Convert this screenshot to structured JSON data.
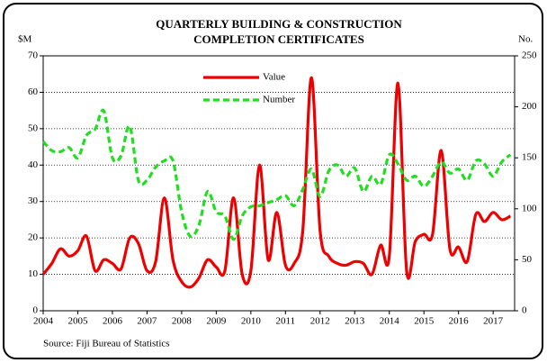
{
  "chart_data": {
    "type": "line",
    "title": [
      "QUARTERLY BUILDING & CONSTRUCTION",
      "COMPLETION CERTIFICATES"
    ],
    "ylabel": "$M",
    "y2label": "No.",
    "source": "Source: Fiji Bureau of Statistics",
    "x": [
      2004,
      2004.25,
      2004.5,
      2004.75,
      2005,
      2005.25,
      2005.5,
      2005.75,
      2006,
      2006.25,
      2006.5,
      2006.75,
      2007,
      2007.25,
      2007.5,
      2007.75,
      2008,
      2008.25,
      2008.5,
      2008.75,
      2009,
      2009.25,
      2009.5,
      2009.75,
      2010,
      2010.25,
      2010.5,
      2010.75,
      2011,
      2011.25,
      2011.5,
      2011.75,
      2012,
      2012.25,
      2012.5,
      2012.75,
      2013,
      2013.25,
      2013.5,
      2013.75,
      2014,
      2014.25,
      2014.5,
      2014.75,
      2015,
      2015.25,
      2015.5,
      2015.75,
      2016,
      2016.25,
      2016.5,
      2016.75,
      2017,
      2017.25,
      2017.5
    ],
    "xlim": [
      2004,
      2017.62
    ],
    "xticks": [
      2004,
      2005,
      2006,
      2007,
      2008,
      2009,
      2010,
      2011,
      2012,
      2013,
      2014,
      2015,
      2016,
      2017
    ],
    "ylim": [
      0,
      70
    ],
    "yticks": [
      0,
      10,
      20,
      30,
      40,
      50,
      60,
      70
    ],
    "y2lim": [
      0,
      250
    ],
    "y2ticks": [
      0,
      50,
      100,
      150,
      200,
      250
    ],
    "grid": true,
    "series": [
      {
        "name": "Value",
        "color": "#ee0000",
        "dash": false,
        "values": [
          10,
          13,
          17,
          15,
          16.5,
          20.5,
          11,
          14,
          13,
          11.5,
          20,
          18.5,
          11,
          13.5,
          31,
          14,
          8,
          6.5,
          9,
          14,
          12,
          11,
          31,
          10,
          11,
          40,
          14,
          27,
          12.5,
          13,
          22,
          64,
          22,
          15,
          13,
          12.5,
          13.5,
          13,
          10,
          18,
          15,
          62.5,
          11,
          19,
          21,
          21,
          44,
          17,
          17.5,
          13.5,
          26.5,
          24.5,
          27,
          25,
          26
        ]
      },
      {
        "name": "Number",
        "color": "#22dd22",
        "dash": true,
        "axis": "y2",
        "values": [
          166,
          157,
          156,
          160,
          150,
          172,
          178,
          196,
          150,
          152,
          181,
          128,
          128,
          141,
          147,
          147,
          97,
          73,
          84,
          117,
          97,
          93,
          70,
          93,
          102,
          103,
          106,
          109,
          113,
          103,
          119,
          139,
          112,
          137,
          143,
          132,
          140,
          117,
          132,
          124,
          153,
          144,
          128,
          132,
          122,
          132,
          146,
          135,
          139,
          128,
          147,
          144,
          132,
          146,
          153
        ]
      }
    ]
  }
}
